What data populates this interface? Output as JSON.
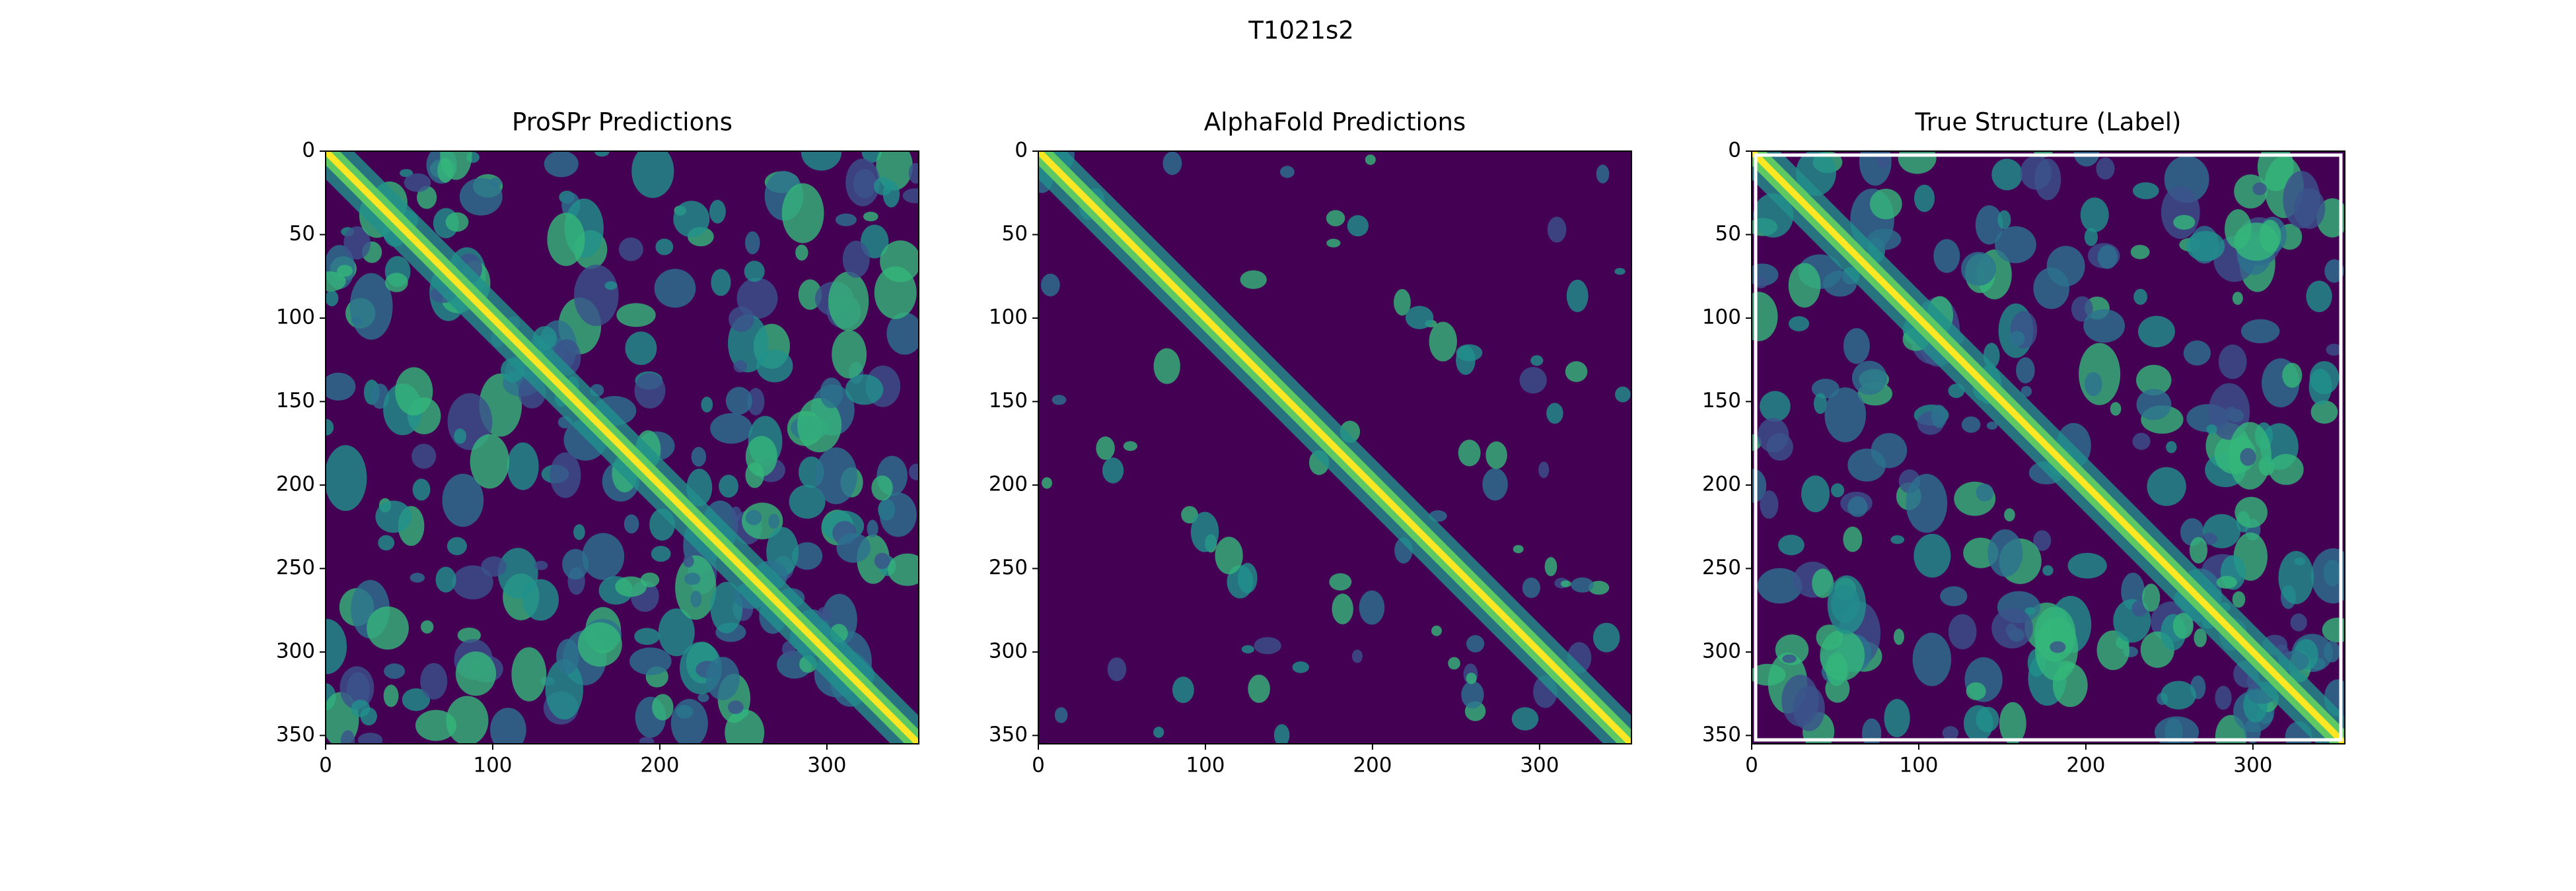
{
  "title": "T1021s2",
  "chart_data": [
    {
      "type": "heatmap",
      "title": "ProSPr Predictions",
      "xlim": [
        0,
        355
      ],
      "ylim": [
        355,
        0
      ],
      "xticks": [
        0,
        100,
        200,
        300
      ],
      "yticks": [
        0,
        50,
        100,
        150,
        200,
        250,
        300,
        350
      ]
    },
    {
      "type": "heatmap",
      "title": "AlphaFold Predictions",
      "xlim": [
        0,
        355
      ],
      "ylim": [
        355,
        0
      ],
      "xticks": [
        0,
        100,
        200,
        300
      ],
      "yticks": [
        0,
        50,
        100,
        150,
        200,
        250,
        300,
        350
      ]
    },
    {
      "type": "heatmap",
      "title": "True Structure (Label)",
      "xlim": [
        0,
        355
      ],
      "ylim": [
        355,
        0
      ],
      "xticks": [
        0,
        100,
        200,
        300
      ],
      "yticks": [
        0,
        50,
        100,
        150,
        200,
        250,
        300,
        350
      ]
    }
  ]
}
